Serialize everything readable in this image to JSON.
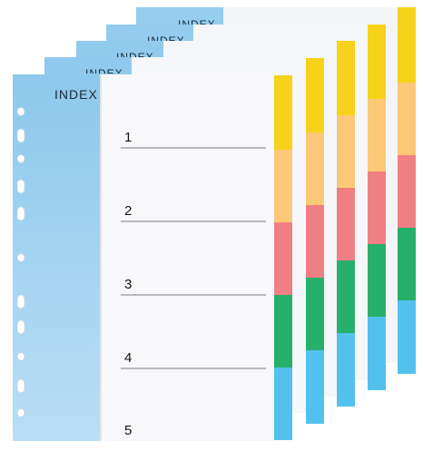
{
  "product": {
    "cover_label": "INDEX",
    "tab_numbers": [
      "1",
      "2",
      "3",
      "4",
      "5"
    ],
    "sheet_count": 5,
    "colors": {
      "cover_blue": "#8ec8ec",
      "cover_blue_light": "#b6dcf5",
      "page": "#f8f8fb",
      "tab_yellow": "#f6d21a",
      "tab_orange": "#fbc877",
      "tab_red": "#f07f83",
      "tab_green": "#27b06a",
      "tab_blue": "#53c1ee"
    }
  }
}
